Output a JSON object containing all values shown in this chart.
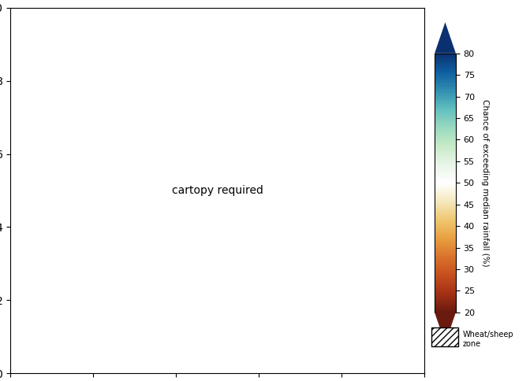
{
  "title": "",
  "colorbar_label": "Chance of exceeding median rainfall (%)",
  "colorbar_ticks": [
    20,
    25,
    30,
    35,
    40,
    45,
    50,
    55,
    60,
    65,
    70,
    75,
    80
  ],
  "colorbar_colors": [
    "#6b1a0f",
    "#a33015",
    "#c75020",
    "#d9732b",
    "#e8a040",
    "#f0c870",
    "#f5e8c0",
    "#ffffff",
    "#e8f5e8",
    "#c8ecc8",
    "#98d898",
    "#60c0c0",
    "#3090b0",
    "#1060a0",
    "#0a3070"
  ],
  "legend_label": "Wheat/sheep\nzone",
  "figsize": [
    6.72,
    4.84
  ],
  "dpi": 100,
  "map_extent": [
    112,
    154,
    -44,
    -10
  ],
  "background_color": "#ffffff"
}
